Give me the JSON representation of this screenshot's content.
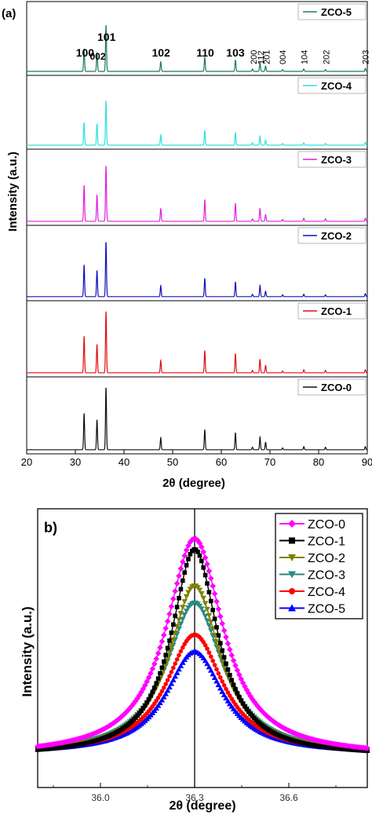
{
  "panel_a": {
    "label": "(a)",
    "xlabel": "2θ (degree)",
    "ylabel": "Intensity (a.u.)",
    "xticks": [
      "20",
      "30",
      "40",
      "50",
      "60",
      "70",
      "80",
      "90"
    ],
    "peak_labels": [
      {
        "text": "100",
        "x": 32.0,
        "rotate": false
      },
      {
        "text": "002",
        "x": 34.6,
        "rotate": false
      },
      {
        "text": "101",
        "x": 36.4,
        "rotate": false
      },
      {
        "text": "102",
        "x": 47.6,
        "rotate": false
      },
      {
        "text": "110",
        "x": 56.7,
        "rotate": false
      },
      {
        "text": "103",
        "x": 62.9,
        "rotate": false
      },
      {
        "text": "200",
        "x": 66.6,
        "rotate": true
      },
      {
        "text": "112",
        "x": 68.1,
        "rotate": true
      },
      {
        "text": "201",
        "x": 69.3,
        "rotate": true
      },
      {
        "text": "004",
        "x": 72.6,
        "rotate": true
      },
      {
        "text": "104",
        "x": 77.0,
        "rotate": true
      },
      {
        "text": "202",
        "x": 81.5,
        "rotate": true
      },
      {
        "text": "203",
        "x": 89.6,
        "rotate": true
      }
    ]
  },
  "panel_b": {
    "label": "b)",
    "xlabel": "2θ (degree)",
    "ylabel": "Intensity (a.u.)",
    "xticks": [
      "36.0",
      "36.3",
      "36.6"
    ]
  },
  "chart_data": [
    {
      "type": "line",
      "panel": "a",
      "xlabel": "2θ (degree)",
      "ylabel": "Intensity (a.u.)",
      "xlim": [
        20,
        90
      ],
      "peaks_2theta": [
        31.8,
        34.45,
        36.3,
        47.55,
        56.6,
        62.9,
        66.4,
        67.95,
        69.1,
        72.6,
        76.95,
        81.4,
        89.6
      ],
      "peak_miller": [
        "100",
        "002",
        "101",
        "102",
        "110",
        "103",
        "200",
        "112",
        "201",
        "004",
        "104",
        "202",
        "203"
      ],
      "series": [
        {
          "name": "ZCO-5",
          "color": "#1a7a5e",
          "relative_intensities": [
            0.38,
            0.32,
            0.78,
            0.16,
            0.24,
            0.19,
            0.04,
            0.15,
            0.09,
            0.03,
            0.04,
            0.03,
            0.05
          ]
        },
        {
          "name": "ZCO-4",
          "color": "#2ee0e0",
          "relative_intensities": [
            0.38,
            0.36,
            0.75,
            0.17,
            0.25,
            0.21,
            0.04,
            0.15,
            0.09,
            0.03,
            0.04,
            0.03,
            0.05
          ]
        },
        {
          "name": "ZCO-3",
          "color": "#e020e0",
          "relative_intensities": [
            0.58,
            0.43,
            0.9,
            0.21,
            0.35,
            0.29,
            0.04,
            0.21,
            0.11,
            0.03,
            0.05,
            0.04,
            0.05
          ]
        },
        {
          "name": "ZCO-2",
          "color": "#1010c0",
          "relative_intensities": [
            0.52,
            0.43,
            0.9,
            0.18,
            0.3,
            0.24,
            0.04,
            0.18,
            0.09,
            0.03,
            0.04,
            0.03,
            0.05
          ]
        },
        {
          "name": "ZCO-1",
          "color": "#e01010",
          "relative_intensities": [
            0.59,
            0.46,
            1.0,
            0.2,
            0.36,
            0.31,
            0.04,
            0.22,
            0.12,
            0.03,
            0.05,
            0.04,
            0.05
          ]
        },
        {
          "name": "ZCO-0",
          "color": "#101010",
          "relative_intensities": [
            0.58,
            0.48,
            1.0,
            0.19,
            0.32,
            0.27,
            0.04,
            0.2,
            0.12,
            0.03,
            0.05,
            0.04,
            0.05
          ]
        }
      ],
      "legend_placement": "top-right of each stacked panel",
      "grid": false
    },
    {
      "type": "scatter",
      "panel": "b",
      "xlabel": "2θ (degree)",
      "ylabel": "Intensity (a.u.)",
      "xlim": [
        35.8,
        36.85
      ],
      "x_ticks": [
        36.0,
        36.3,
        36.6
      ],
      "reference_line_x": 36.3,
      "peak_center": 36.3,
      "series": [
        {
          "name": "ZCO-0",
          "color": "#ff00ff",
          "marker": "diamond",
          "peak_relative": 1.0,
          "width": 0.11
        },
        {
          "name": "ZCO-1",
          "color": "#000000",
          "marker": "square",
          "peak_relative": 0.95,
          "width": 0.09
        },
        {
          "name": "ZCO-2",
          "color": "#808000",
          "marker": "triangle-down",
          "peak_relative": 0.78,
          "width": 0.1
        },
        {
          "name": "ZCO-3",
          "color": "#2a8a80",
          "marker": "triangle-down",
          "peak_relative": 0.7,
          "width": 0.11
        },
        {
          "name": "ZCO-4",
          "color": "#ff0000",
          "marker": "circle",
          "peak_relative": 0.55,
          "width": 0.11
        },
        {
          "name": "ZCO-5",
          "color": "#0000ff",
          "marker": "triangle-up",
          "peak_relative": 0.47,
          "width": 0.11
        }
      ],
      "legend_placement": "top-right",
      "grid": false
    }
  ]
}
